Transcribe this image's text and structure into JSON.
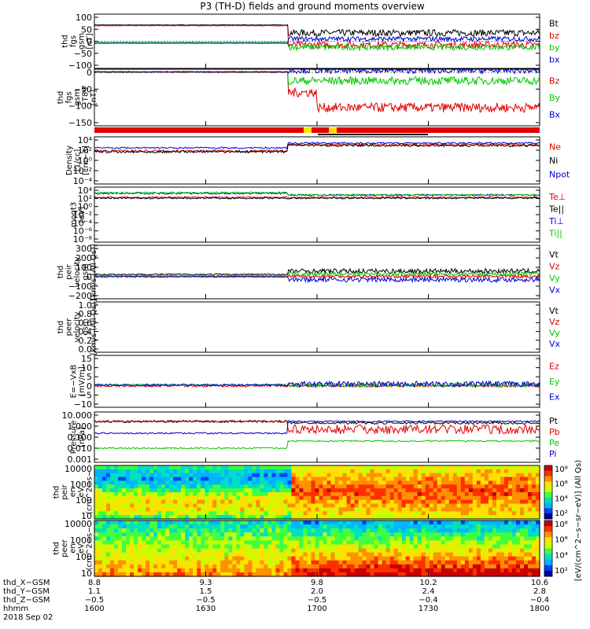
{
  "title": "P3 (TH-D) fields and ground moments overview",
  "colors": {
    "black": "#000000",
    "red": "#e00000",
    "green": "#00c800",
    "blue": "#0000d0",
    "yellow": "#ffe000"
  },
  "chart_data": [
    {
      "type": "line",
      "id": "fgs_gsm",
      "ylabel_lines": [
        "thd",
        "fgs",
        "gsm",
        "[nT]"
      ],
      "yticks": [
        "100",
        "50",
        "0",
        "−50",
        "−100"
      ],
      "ylim": [
        -100,
        100
      ],
      "series": [
        {
          "name": "Bt",
          "color": "#000000"
        },
        {
          "name": "bz",
          "color": "#e00000"
        },
        {
          "name": "by",
          "color": "#00c800"
        },
        {
          "name": "bx",
          "color": "#0000d0"
        }
      ]
    },
    {
      "type": "line",
      "id": "fgs_gsm_t89",
      "ylabel_lines": [
        "thd",
        "fgs",
        "gsm",
        "−T89",
        "[nT]"
      ],
      "yticks": [
        "0",
        "−50",
        "−100",
        "−150"
      ],
      "ylim": [
        -170,
        20
      ],
      "series": [
        {
          "name": "Bz",
          "color": "#e00000"
        },
        {
          "name": "By",
          "color": "#00c800"
        },
        {
          "name": "Bx",
          "color": "#0000d0"
        }
      ]
    },
    {
      "type": "line",
      "id": "density",
      "ylabel_lines": [
        "Density",
        "[1/cc]",
        "[cm−3]"
      ],
      "yticks": [
        "10⁴",
        "10²",
        "10⁰",
        "10⁻²",
        "10⁻⁴"
      ],
      "series": [
        {
          "name": "Ne",
          "color": "#e00000"
        },
        {
          "name": "Ni",
          "color": "#000000"
        },
        {
          "name": "Npot",
          "color": "#0000d0"
        }
      ]
    },
    {
      "type": "line",
      "id": "temperature",
      "ylabel_lines": [
        "moqt3",
        "[eV]"
      ],
      "yticks": [
        "10⁴",
        "10²",
        "10⁰",
        "10⁻²",
        "10⁻⁴",
        "10⁻⁶",
        "10⁻⁸"
      ],
      "series": [
        {
          "name": "Te⊥",
          "color": "#e00000"
        },
        {
          "name": "Te||",
          "color": "#000000"
        },
        {
          "name": "Ti⊥",
          "color": "#0000d0"
        },
        {
          "name": "Ti||",
          "color": "#00c800"
        }
      ]
    },
    {
      "type": "line",
      "id": "peir_velocity",
      "ylabel_lines": [
        "thd",
        "peir",
        "velocity",
        "gsm",
        "[km/s (All Qs)]"
      ],
      "yticks": [
        "300",
        "200",
        "100",
        "0",
        "−100",
        "−200"
      ],
      "ylim": [
        -200,
        300
      ],
      "series": [
        {
          "name": "Vt",
          "color": "#000000"
        },
        {
          "name": "Vz",
          "color": "#e00000"
        },
        {
          "name": "Vy",
          "color": "#00c800"
        },
        {
          "name": "Vx",
          "color": "#0000d0"
        }
      ]
    },
    {
      "type": "line",
      "id": "peer_velocity",
      "ylabel_lines": [
        "thd",
        "peer",
        "velocity",
        "gsm",
        "[km/s (All Qs)]"
      ],
      "yticks": [
        "1.0",
        "0.8",
        "0.6",
        "0.4",
        "0.2",
        "0.0"
      ],
      "ylim": [
        0,
        1
      ],
      "series": [
        {
          "name": "Vt",
          "color": "#000000"
        },
        {
          "name": "Vz",
          "color": "#e00000"
        },
        {
          "name": "Vy",
          "color": "#00c800"
        },
        {
          "name": "Vx",
          "color": "#0000d0"
        }
      ]
    },
    {
      "type": "line",
      "id": "efield",
      "ylabel_lines": [
        "E=−VxB",
        "[mV/m]"
      ],
      "yticks": [
        "15",
        "10",
        "5",
        "0",
        "−5",
        "−10"
      ],
      "ylim": [
        -10,
        15
      ],
      "series": [
        {
          "name": "Ez",
          "color": "#e00000"
        },
        {
          "name": "Ey",
          "color": "#00c800"
        },
        {
          "name": "Ex",
          "color": "#0000d0"
        }
      ]
    },
    {
      "type": "line",
      "id": "pressure",
      "ylabel_lines": [
        "Pressure",
        "[nPa]"
      ],
      "yticks": [
        "10.000",
        "1.000",
        "0.100",
        "0.010",
        "0.001"
      ],
      "series": [
        {
          "name": "Pt",
          "color": "#000000"
        },
        {
          "name": "Pb",
          "color": "#e00000"
        },
        {
          "name": "Pe",
          "color": "#00c800"
        },
        {
          "name": "Pi",
          "color": "#0000d0"
        }
      ]
    },
    {
      "type": "heatmap",
      "id": "peir_eflux",
      "ylabel_lines": [
        "thd",
        "peir",
        "en",
        "eV",
        "(cm^2−s−",
        "sr−eV)"
      ],
      "yticks": [
        "10000",
        "1000",
        "100",
        "10"
      ],
      "colorbar_ticks": [
        "10⁸",
        "10⁶",
        "10⁴",
        "10²"
      ]
    },
    {
      "type": "heatmap",
      "id": "peer_eflux",
      "ylabel_lines": [
        "thd",
        "peer",
        "en",
        "eV",
        "(cm^2−s−",
        "sr−eV)"
      ],
      "yticks": [
        "10000",
        "1000",
        "100",
        "10"
      ],
      "colorbar_ticks": [
        "10⁸",
        "10⁶",
        "10⁴",
        "10²"
      ]
    }
  ],
  "colorbar_label": "[eV/(cm^2−s−sr−eV)] (All Qs)",
  "xaxis": {
    "row_labels": [
      "thd_X−GSM",
      "thd_Y−GSM",
      "thd_Z−GSM",
      "hhmm",
      "2018 Sep 02"
    ],
    "columns": [
      [
        "8.8",
        "1.1",
        "−0.5",
        "1600"
      ],
      [
        "9.3",
        "1.5",
        "−0.5",
        "1630"
      ],
      [
        "9.8",
        "2.0",
        "−0.5",
        "1700"
      ],
      [
        "10.2",
        "2.4",
        "−0.4",
        "1730"
      ],
      [
        "10.6",
        "2.8",
        "−0.4",
        "1800"
      ]
    ]
  }
}
